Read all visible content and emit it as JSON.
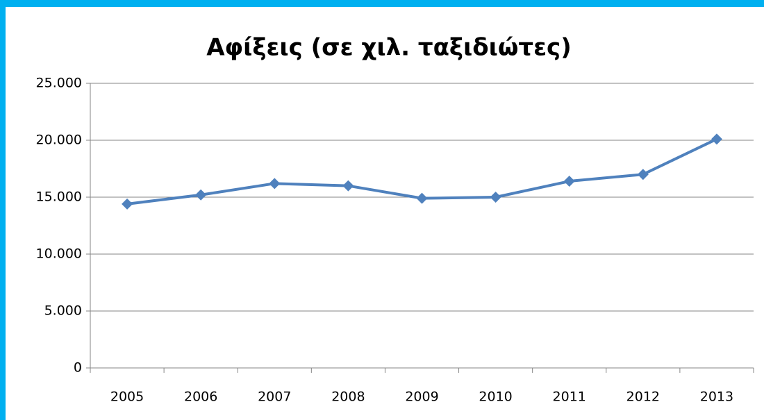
{
  "chart_data": {
    "type": "line",
    "title": "Αφίξεις (σε χιλ. ταξιδιώτες)",
    "categories": [
      "2005",
      "2006",
      "2007",
      "2008",
      "2009",
      "2010",
      "2011",
      "2012",
      "2013"
    ],
    "values": [
      14400,
      15200,
      16200,
      16000,
      14900,
      15000,
      16400,
      17000,
      20100
    ],
    "color": "#4f81bd",
    "ylim": [
      0,
      25000
    ],
    "yticks": [
      0,
      {
        "value": 5000,
        "label": "5.000"
      },
      {
        "value": 10000,
        "label": "10.000"
      },
      {
        "value": 15000,
        "label": "15.000"
      },
      {
        "value": 20000,
        "label": "20.000"
      },
      {
        "value": 25000,
        "label": "25.000"
      }
    ],
    "grid": true
  }
}
